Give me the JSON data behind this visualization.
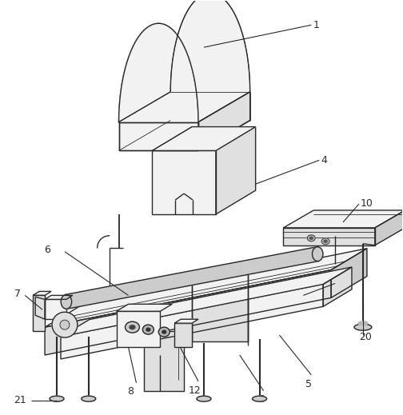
{
  "background_color": "#ffffff",
  "line_color": "#2a2a2a",
  "fill_light": "#f2f2f2",
  "fill_mid": "#e0e0e0",
  "fill_dark": "#cccccc",
  "fill_darker": "#b8b8b8",
  "lw_main": 1.0,
  "lw_thin": 0.6,
  "font_size": 9,
  "fig_width": 5.04,
  "fig_height": 5.19,
  "dpi": 100
}
